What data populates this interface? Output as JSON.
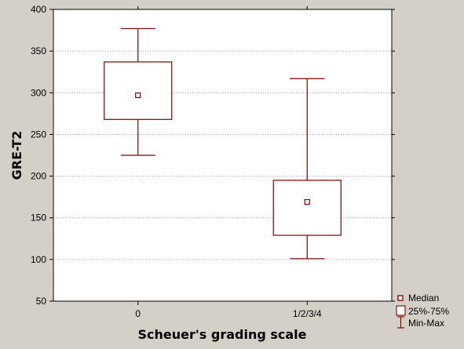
{
  "chart_data": {
    "type": "box",
    "title": "",
    "xlabel": "Scheuer's grading scale",
    "ylabel": "GRE-T2",
    "ylim": [
      50,
      400
    ],
    "yticks": [
      50,
      100,
      150,
      200,
      250,
      300,
      350,
      400
    ],
    "grid": true,
    "legend_position": "bottom-right",
    "categories": [
      "0",
      "1/2/3/4"
    ],
    "boxes": [
      {
        "category": "0",
        "min": 225,
        "q1": 268,
        "median": 297,
        "q3": 337,
        "max": 377
      },
      {
        "category": "1/2/3/4",
        "min": 101,
        "q1": 129,
        "median": 169,
        "q3": 195,
        "max": 317
      }
    ],
    "legend": {
      "median_label": "Median",
      "box_label": "25%-75%",
      "whisker_label": "Min-Max"
    },
    "colors": {
      "series": "#7f0000",
      "background": "#d4d0c8",
      "plot_area": "#ffffff",
      "grid": "#a0a0a0"
    }
  }
}
